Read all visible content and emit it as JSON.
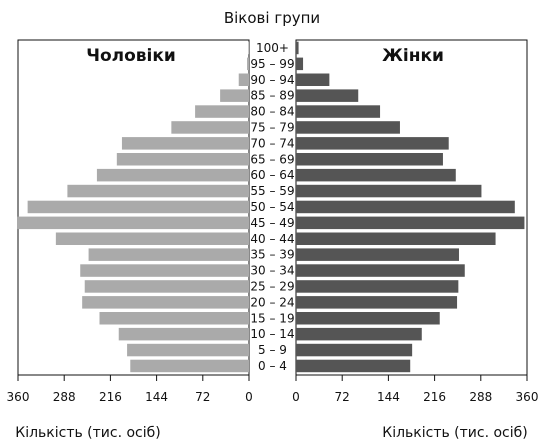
{
  "chart_data": {
    "type": "bar",
    "subtype": "population-pyramid",
    "title": "Вікові групи",
    "xlabel_left": "Кількість (тис. осіб)",
    "xlabel_right": "Кількість (тис. осіб)",
    "xlim": [
      0,
      360
    ],
    "x_ticks": [
      0,
      72,
      144,
      216,
      288,
      360
    ],
    "grid": false,
    "categories": [
      "0 – 4",
      "5 – 9",
      "10 – 14",
      "15 – 19",
      "20 – 24",
      "25 – 29",
      "30 – 34",
      "35 – 39",
      "40 – 44",
      "45 – 49",
      "50 – 54",
      "55 – 59",
      "60 – 64",
      "65 – 69",
      "70 – 74",
      "75 – 79",
      "80 – 84",
      "85 – 89",
      "90 – 94",
      "95 – 99",
      "100+"
    ],
    "series": [
      {
        "name": "Чоловіки",
        "side": "left",
        "color": "#aaaaaa",
        "values": [
          185,
          190,
          203,
          233,
          260,
          256,
          263,
          250,
          301,
          362,
          345,
          283,
          237,
          206,
          198,
          121,
          84,
          45,
          16,
          3,
          1
        ]
      },
      {
        "name": "Жінки",
        "side": "right",
        "color": "#555555",
        "values": [
          178,
          181,
          196,
          224,
          251,
          253,
          263,
          254,
          311,
          356,
          341,
          289,
          249,
          229,
          238,
          162,
          131,
          97,
          52,
          11,
          4
        ]
      }
    ]
  }
}
